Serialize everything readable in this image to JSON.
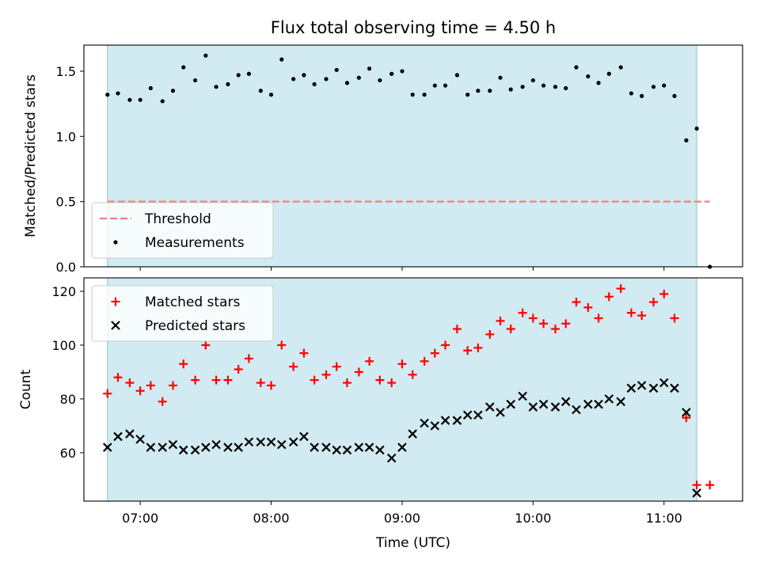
{
  "chart_data": {
    "title": "Flux total observing time = 4.50 h",
    "xlabel": "Time (UTC)",
    "x_unit": "hours UTC",
    "xlim": [
      6.57,
      11.6
    ],
    "xticks": [
      {
        "value": 7,
        "label": "07:00"
      },
      {
        "value": 8,
        "label": "08:00"
      },
      {
        "value": 9,
        "label": "09:00"
      },
      {
        "value": 10,
        "label": "10:00"
      },
      {
        "value": 11,
        "label": "11:00"
      }
    ],
    "shaded_span": {
      "x": [
        6.75,
        11.25
      ],
      "color": "#add8e6"
    },
    "panels": [
      {
        "type": "scatter",
        "ylabel": "Matched/Predicted stars",
        "ylim": [
          0,
          1.7
        ],
        "yticks": [
          {
            "value": 0.0,
            "label": "0.0"
          },
          {
            "value": 0.5,
            "label": "0.5"
          },
          {
            "value": 1.0,
            "label": "1.0"
          },
          {
            "value": 1.5,
            "label": "1.5"
          }
        ],
        "legend_position": "lower-left",
        "threshold": {
          "name": "Threshold",
          "value": 0.5,
          "x": [
            6.75,
            11.35
          ],
          "color": "#f08080"
        },
        "series": [
          {
            "name": "Measurements",
            "marker": "dot",
            "color": "#000000",
            "x": [
              6.75,
              6.83,
              6.92,
              7.0,
              7.08,
              7.17,
              7.25,
              7.33,
              7.42,
              7.5,
              7.58,
              7.67,
              7.75,
              7.83,
              7.92,
              8.0,
              8.08,
              8.17,
              8.25,
              8.33,
              8.42,
              8.5,
              8.58,
              8.67,
              8.75,
              8.83,
              8.92,
              9.0,
              9.08,
              9.17,
              9.25,
              9.33,
              9.42,
              9.5,
              9.58,
              9.67,
              9.75,
              9.83,
              9.92,
              10.0,
              10.08,
              10.17,
              10.25,
              10.33,
              10.42,
              10.5,
              10.58,
              10.67,
              10.75,
              10.83,
              10.92,
              11.0,
              11.08,
              11.17,
              11.25,
              11.35
            ],
            "y": [
              1.32,
              1.33,
              1.28,
              1.28,
              1.37,
              1.27,
              1.35,
              1.53,
              1.43,
              1.62,
              1.38,
              1.4,
              1.47,
              1.48,
              1.35,
              1.32,
              1.59,
              1.44,
              1.47,
              1.4,
              1.44,
              1.51,
              1.41,
              1.45,
              1.52,
              1.43,
              1.48,
              1.5,
              1.32,
              1.32,
              1.39,
              1.39,
              1.47,
              1.32,
              1.35,
              1.35,
              1.45,
              1.36,
              1.38,
              1.43,
              1.39,
              1.38,
              1.37,
              1.53,
              1.46,
              1.41,
              1.48,
              1.53,
              1.33,
              1.31,
              1.38,
              1.39,
              1.31,
              0.97,
              1.06,
              0.0
            ]
          }
        ]
      },
      {
        "type": "scatter",
        "ylabel": "Count",
        "ylim": [
          42,
          125
        ],
        "yticks": [
          {
            "value": 60,
            "label": "60"
          },
          {
            "value": 80,
            "label": "80"
          },
          {
            "value": 100,
            "label": "100"
          },
          {
            "value": 120,
            "label": "120"
          }
        ],
        "legend_position": "upper-left",
        "series": [
          {
            "name": "Matched stars",
            "marker": "plus",
            "color": "#ff0000",
            "x": [
              6.75,
              6.83,
              6.92,
              7.0,
              7.08,
              7.17,
              7.25,
              7.33,
              7.42,
              7.5,
              7.58,
              7.67,
              7.75,
              7.83,
              7.92,
              8.0,
              8.08,
              8.17,
              8.25,
              8.33,
              8.42,
              8.5,
              8.58,
              8.67,
              8.75,
              8.83,
              8.92,
              9.0,
              9.08,
              9.17,
              9.25,
              9.33,
              9.42,
              9.5,
              9.58,
              9.67,
              9.75,
              9.83,
              9.92,
              10.0,
              10.08,
              10.17,
              10.25,
              10.33,
              10.42,
              10.5,
              10.58,
              10.67,
              10.75,
              10.83,
              10.92,
              11.0,
              11.08,
              11.17,
              11.25,
              11.35
            ],
            "y": [
              82,
              88,
              86,
              83,
              85,
              79,
              85,
              93,
              87,
              100,
              87,
              87,
              91,
              95,
              86,
              85,
              100,
              92,
              97,
              87,
              89,
              92,
              86,
              90,
              94,
              87,
              86,
              93,
              89,
              94,
              97,
              100,
              106,
              98,
              99,
              104,
              109,
              106,
              112,
              110,
              108,
              106,
              108,
              116,
              114,
              110,
              118,
              121,
              112,
              111,
              116,
              119,
              110,
              73,
              48,
              48
            ]
          },
          {
            "name": "Predicted stars",
            "marker": "x",
            "color": "#000000",
            "x": [
              6.75,
              6.83,
              6.92,
              7.0,
              7.08,
              7.17,
              7.25,
              7.33,
              7.42,
              7.5,
              7.58,
              7.67,
              7.75,
              7.83,
              7.92,
              8.0,
              8.08,
              8.17,
              8.25,
              8.33,
              8.42,
              8.5,
              8.58,
              8.67,
              8.75,
              8.83,
              8.92,
              9.0,
              9.08,
              9.17,
              9.25,
              9.33,
              9.42,
              9.5,
              9.58,
              9.67,
              9.75,
              9.83,
              9.92,
              10.0,
              10.08,
              10.17,
              10.25,
              10.33,
              10.42,
              10.5,
              10.58,
              10.67,
              10.75,
              10.83,
              10.92,
              11.0,
              11.08,
              11.17,
              11.25
            ],
            "y": [
              62,
              66,
              67,
              65,
              62,
              62,
              63,
              61,
              61,
              62,
              63,
              62,
              62,
              64,
              64,
              64,
              63,
              64,
              66,
              62,
              62,
              61,
              61,
              62,
              62,
              61,
              58,
              62,
              67,
              71,
              70,
              72,
              72,
              74,
              74,
              77,
              75,
              78,
              81,
              77,
              78,
              77,
              79,
              76,
              78,
              78,
              80,
              79,
              84,
              85,
              84,
              86,
              84,
              75,
              45
            ]
          }
        ]
      }
    ]
  }
}
